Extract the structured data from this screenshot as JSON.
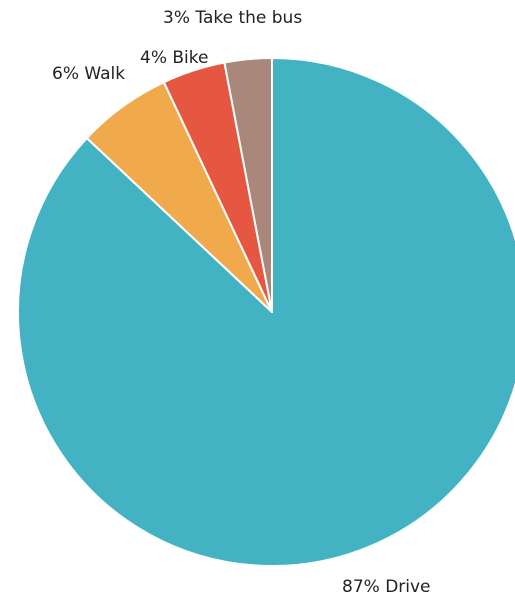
{
  "chart_data": {
    "type": "pie",
    "title": "",
    "start": "12 o'clock",
    "direction": "clockwise",
    "legend": "none",
    "slices": [
      {
        "label": "87% Drive",
        "value": 87,
        "color": "#43b2c2"
      },
      {
        "label": "6% Walk",
        "value": 6,
        "color": "#f0aa4c"
      },
      {
        "label": "4% Bike",
        "value": 4,
        "color": "#e65742"
      },
      {
        "label": "3% Take the bus",
        "value": 3,
        "color": "#a9877a"
      }
    ]
  }
}
